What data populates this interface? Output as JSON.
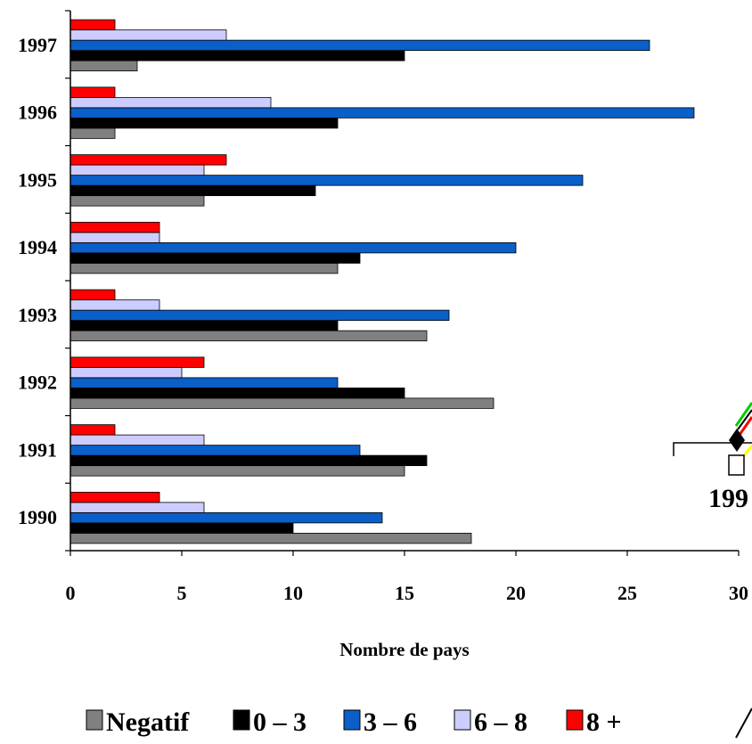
{
  "chart_data": {
    "type": "bar",
    "orientation": "horizontal",
    "categories": [
      "1990",
      "1991",
      "1992",
      "1993",
      "1994",
      "1995",
      "1996",
      "1997"
    ],
    "series": [
      {
        "name": "Negatif",
        "color": "#808080",
        "values": [
          18,
          15,
          19,
          16,
          12,
          6,
          2,
          3
        ]
      },
      {
        "name": "0 – 3",
        "color": "#000000",
        "values": [
          10,
          16,
          15,
          12,
          13,
          11,
          12,
          15
        ]
      },
      {
        "name": "3 – 6",
        "color": "#0a5fc8",
        "values": [
          14,
          13,
          12,
          17,
          20,
          23,
          28,
          26
        ]
      },
      {
        "name": "6 – 8",
        "color": "#ccccff",
        "values": [
          6,
          6,
          5,
          4,
          4,
          6,
          9,
          7
        ]
      },
      {
        "name": "8 +",
        "color": "#ff0000",
        "values": [
          4,
          2,
          6,
          2,
          4,
          7,
          2,
          2
        ]
      }
    ],
    "xlabel": "Nombre de pays",
    "ylabel": "",
    "xlim": [
      0,
      30
    ],
    "xticks": [
      "0",
      "5",
      "10",
      "15",
      "20",
      "25",
      "30"
    ],
    "grid": false,
    "legend_position": "bottom"
  },
  "overlay": {
    "partial_label": "199"
  }
}
